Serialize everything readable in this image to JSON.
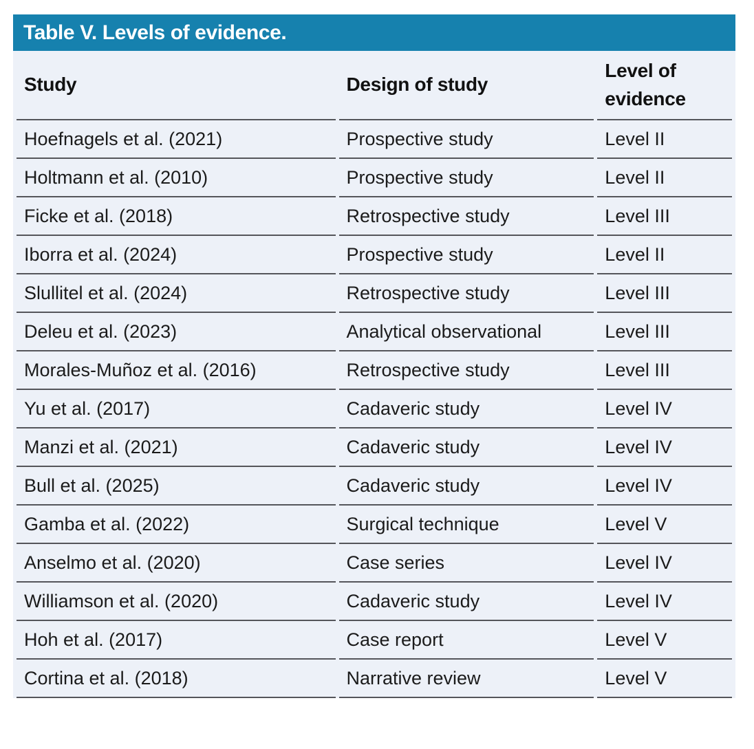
{
  "colors": {
    "accent": "#1681AE",
    "row-bg": "#EDF1F8",
    "divider": "#54555A",
    "text": "#1B1B1B",
    "title-text": "#FFFFFF"
  },
  "table": {
    "title": "Table V. Levels of evidence.",
    "columns": [
      "Study",
      "Design of study",
      "Level of evidence"
    ],
    "rows": [
      {
        "study": "Hoefnagels et al. (2021)",
        "design": "Prospective study",
        "level": "Level II"
      },
      {
        "study": "Holtmann et al. (2010)",
        "design": "Prospective study",
        "level": "Level II"
      },
      {
        "study": "Ficke et al. (2018)",
        "design": "Retrospective study",
        "level": "Level III"
      },
      {
        "study": "Iborra et al. (2024)",
        "design": "Prospective study",
        "level": "Level II"
      },
      {
        "study": "Slullitel et al. (2024)",
        "design": "Retrospective study",
        "level": "Level III"
      },
      {
        "study": "Deleu et al. (2023)",
        "design": "Analytical observational",
        "level": "Level III"
      },
      {
        "study": "Morales-Muñoz et al. (2016)",
        "design": "Retrospective study",
        "level": "Level III"
      },
      {
        "study": "Yu et al. (2017)",
        "design": "Cadaveric study",
        "level": "Level IV"
      },
      {
        "study": "Manzi et al. (2021)",
        "design": "Cadaveric study",
        "level": "Level IV"
      },
      {
        "study": "Bull et al. (2025)",
        "design": "Cadaveric study",
        "level": "Level IV"
      },
      {
        "study": "Gamba et al. (2022)",
        "design": "Surgical technique",
        "level": "Level V"
      },
      {
        "study": "Anselmo et al. (2020)",
        "design": "Case series",
        "level": "Level IV"
      },
      {
        "study": "Williamson et al. (2020)",
        "design": "Cadaveric study",
        "level": "Level IV"
      },
      {
        "study": "Hoh et al. (2017)",
        "design": "Case report",
        "level": "Level V"
      },
      {
        "study": "Cortina et al. (2018)",
        "design": "Narrative review",
        "level": "Level V"
      }
    ]
  }
}
